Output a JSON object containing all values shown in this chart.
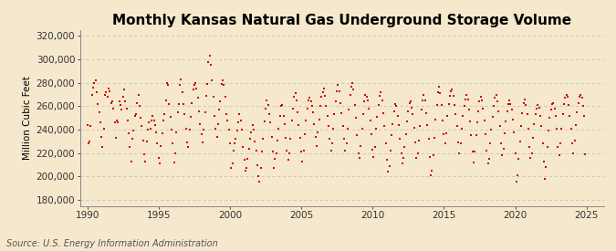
{
  "title": "Monthly Kansas Natural Gas Underground Storage Volume",
  "ylabel": "Million Cubic Feet",
  "source": "Source: U.S. Energy Information Administration",
  "background_color": "#f5e8cc",
  "marker_color": "#cc0000",
  "xlim": [
    1989.5,
    2026.2
  ],
  "ylim": [
    175000,
    325000
  ],
  "yticks": [
    180000,
    200000,
    220000,
    240000,
    260000,
    280000,
    300000,
    320000
  ],
  "ytick_labels": [
    "180,000",
    "200,000",
    "220,000",
    "240,000",
    "260,000",
    "280,000",
    "300,000",
    "320,000"
  ],
  "xticks": [
    1990,
    1995,
    2000,
    2005,
    2010,
    2015,
    2020,
    2025
  ],
  "grid_color": "#bbbbbb",
  "title_fontsize": 11,
  "label_fontsize": 7.5,
  "tick_fontsize": 7.5,
  "source_fontsize": 7,
  "data": [
    [
      1990.0,
      244000
    ],
    [
      1990.08,
      228000
    ],
    [
      1990.17,
      230000
    ],
    [
      1990.25,
      243000
    ],
    [
      1990.33,
      270000
    ],
    [
      1990.42,
      276000
    ],
    [
      1990.5,
      280000
    ],
    [
      1990.58,
      282000
    ],
    [
      1990.67,
      272000
    ],
    [
      1990.75,
      262000
    ],
    [
      1990.83,
      255000
    ],
    [
      1990.92,
      246000
    ],
    [
      1991.0,
      234000
    ],
    [
      1991.08,
      225000
    ],
    [
      1991.17,
      241000
    ],
    [
      1991.25,
      270000
    ],
    [
      1991.33,
      272000
    ],
    [
      1991.42,
      268000
    ],
    [
      1991.5,
      275000
    ],
    [
      1991.58,
      273000
    ],
    [
      1991.67,
      263000
    ],
    [
      1991.75,
      264000
    ],
    [
      1991.83,
      258000
    ],
    [
      1991.92,
      246000
    ],
    [
      1992.0,
      233000
    ],
    [
      1992.08,
      248000
    ],
    [
      1992.17,
      246000
    ],
    [
      1992.25,
      264000
    ],
    [
      1992.33,
      261000
    ],
    [
      1992.42,
      257000
    ],
    [
      1992.5,
      268000
    ],
    [
      1992.58,
      274000
    ],
    [
      1992.67,
      264000
    ],
    [
      1992.75,
      258000
    ],
    [
      1992.83,
      248000
    ],
    [
      1992.92,
      237000
    ],
    [
      1993.0,
      225000
    ],
    [
      1993.08,
      213000
    ],
    [
      1993.17,
      232000
    ],
    [
      1993.25,
      239000
    ],
    [
      1993.33,
      252000
    ],
    [
      1993.42,
      253000
    ],
    [
      1993.5,
      263000
    ],
    [
      1993.58,
      270000
    ],
    [
      1993.67,
      260000
    ],
    [
      1993.75,
      250000
    ],
    [
      1993.83,
      243000
    ],
    [
      1993.92,
      231000
    ],
    [
      1994.0,
      219000
    ],
    [
      1994.08,
      213000
    ],
    [
      1994.17,
      230000
    ],
    [
      1994.25,
      240000
    ],
    [
      1994.33,
      246000
    ],
    [
      1994.42,
      241000
    ],
    [
      1994.5,
      248000
    ],
    [
      1994.58,
      252000
    ],
    [
      1994.67,
      248000
    ],
    [
      1994.75,
      244000
    ],
    [
      1994.83,
      238000
    ],
    [
      1994.92,
      228000
    ],
    [
      1995.0,
      216000
    ],
    [
      1995.08,
      211000
    ],
    [
      1995.17,
      226000
    ],
    [
      1995.25,
      237000
    ],
    [
      1995.33,
      248000
    ],
    [
      1995.42,
      253000
    ],
    [
      1995.5,
      265000
    ],
    [
      1995.58,
      280000
    ],
    [
      1995.67,
      278000
    ],
    [
      1995.75,
      262000
    ],
    [
      1995.83,
      251000
    ],
    [
      1995.92,
      240000
    ],
    [
      1996.0,
      228000
    ],
    [
      1996.08,
      212000
    ],
    [
      1996.17,
      220000
    ],
    [
      1996.25,
      238000
    ],
    [
      1996.33,
      255000
    ],
    [
      1996.42,
      262000
    ],
    [
      1996.5,
      278000
    ],
    [
      1996.58,
      283000
    ],
    [
      1996.67,
      272000
    ],
    [
      1996.75,
      262000
    ],
    [
      1996.83,
      253000
    ],
    [
      1996.92,
      241000
    ],
    [
      1997.0,
      229000
    ],
    [
      1997.08,
      225000
    ],
    [
      1997.17,
      240000
    ],
    [
      1997.25,
      251000
    ],
    [
      1997.33,
      263000
    ],
    [
      1997.42,
      274000
    ],
    [
      1997.5,
      278000
    ],
    [
      1997.58,
      280000
    ],
    [
      1997.67,
      275000
    ],
    [
      1997.75,
      267000
    ],
    [
      1997.83,
      256000
    ],
    [
      1997.92,
      245000
    ],
    [
      1998.0,
      236000
    ],
    [
      1998.08,
      229000
    ],
    [
      1998.17,
      240000
    ],
    [
      1998.25,
      255000
    ],
    [
      1998.33,
      269000
    ],
    [
      1998.42,
      279000
    ],
    [
      1998.5,
      298000
    ],
    [
      1998.58,
      303000
    ],
    [
      1998.67,
      295000
    ],
    [
      1998.75,
      282000
    ],
    [
      1998.83,
      268000
    ],
    [
      1998.92,
      252000
    ],
    [
      1999.0,
      241000
    ],
    [
      1999.08,
      234000
    ],
    [
      1999.17,
      245000
    ],
    [
      1999.25,
      257000
    ],
    [
      1999.33,
      264000
    ],
    [
      1999.42,
      279000
    ],
    [
      1999.5,
      282000
    ],
    [
      1999.58,
      278000
    ],
    [
      1999.67,
      268000
    ],
    [
      1999.75,
      253000
    ],
    [
      1999.83,
      248000
    ],
    [
      1999.92,
      240000
    ],
    [
      2000.0,
      228000
    ],
    [
      2000.08,
      207000
    ],
    [
      2000.17,
      211000
    ],
    [
      2000.25,
      222000
    ],
    [
      2000.33,
      228000
    ],
    [
      2000.42,
      232000
    ],
    [
      2000.5,
      239000
    ],
    [
      2000.58,
      246000
    ],
    [
      2000.67,
      253000
    ],
    [
      2000.75,
      248000
    ],
    [
      2000.83,
      240000
    ],
    [
      2000.92,
      225000
    ],
    [
      2001.0,
      214000
    ],
    [
      2001.08,
      205000
    ],
    [
      2001.17,
      207000
    ],
    [
      2001.25,
      215000
    ],
    [
      2001.33,
      224000
    ],
    [
      2001.42,
      232000
    ],
    [
      2001.5,
      238000
    ],
    [
      2001.58,
      244000
    ],
    [
      2001.67,
      240000
    ],
    [
      2001.75,
      230000
    ],
    [
      2001.83,
      222000
    ],
    [
      2001.92,
      210000
    ],
    [
      2002.0,
      200000
    ],
    [
      2002.08,
      196000
    ],
    [
      2002.17,
      207000
    ],
    [
      2002.25,
      221000
    ],
    [
      2002.33,
      232000
    ],
    [
      2002.42,
      247000
    ],
    [
      2002.5,
      258000
    ],
    [
      2002.58,
      265000
    ],
    [
      2002.67,
      261000
    ],
    [
      2002.75,
      253000
    ],
    [
      2002.83,
      246000
    ],
    [
      2002.92,
      234000
    ],
    [
      2003.0,
      221000
    ],
    [
      2003.08,
      207000
    ],
    [
      2003.17,
      215000
    ],
    [
      2003.25,
      220000
    ],
    [
      2003.33,
      231000
    ],
    [
      2003.42,
      241000
    ],
    [
      2003.5,
      252000
    ],
    [
      2003.58,
      260000
    ],
    [
      2003.67,
      261000
    ],
    [
      2003.75,
      252000
    ],
    [
      2003.83,
      245000
    ],
    [
      2003.92,
      233000
    ],
    [
      2004.0,
      222000
    ],
    [
      2004.08,
      214000
    ],
    [
      2004.17,
      220000
    ],
    [
      2004.25,
      232000
    ],
    [
      2004.33,
      248000
    ],
    [
      2004.42,
      258000
    ],
    [
      2004.5,
      268000
    ],
    [
      2004.58,
      271000
    ],
    [
      2004.67,
      265000
    ],
    [
      2004.75,
      255000
    ],
    [
      2004.83,
      244000
    ],
    [
      2004.92,
      233000
    ],
    [
      2005.0,
      221000
    ],
    [
      2005.08,
      213000
    ],
    [
      2005.17,
      222000
    ],
    [
      2005.25,
      236000
    ],
    [
      2005.33,
      248000
    ],
    [
      2005.42,
      258000
    ],
    [
      2005.5,
      265000
    ],
    [
      2005.58,
      267000
    ],
    [
      2005.67,
      264000
    ],
    [
      2005.75,
      260000
    ],
    [
      2005.83,
      255000
    ],
    [
      2005.92,
      245000
    ],
    [
      2006.0,
      234000
    ],
    [
      2006.08,
      226000
    ],
    [
      2006.17,
      238000
    ],
    [
      2006.25,
      249000
    ],
    [
      2006.33,
      260000
    ],
    [
      2006.42,
      268000
    ],
    [
      2006.5,
      272000
    ],
    [
      2006.58,
      275000
    ],
    [
      2006.67,
      269000
    ],
    [
      2006.75,
      260000
    ],
    [
      2006.83,
      252000
    ],
    [
      2006.92,
      243000
    ],
    [
      2007.0,
      232000
    ],
    [
      2007.08,
      222000
    ],
    [
      2007.17,
      228000
    ],
    [
      2007.25,
      241000
    ],
    [
      2007.33,
      253000
    ],
    [
      2007.42,
      264000
    ],
    [
      2007.5,
      273000
    ],
    [
      2007.58,
      278000
    ],
    [
      2007.67,
      273000
    ],
    [
      2007.75,
      263000
    ],
    [
      2007.83,
      254000
    ],
    [
      2007.92,
      243000
    ],
    [
      2008.0,
      232000
    ],
    [
      2008.08,
      222000
    ],
    [
      2008.17,
      228000
    ],
    [
      2008.25,
      241000
    ],
    [
      2008.33,
      257000
    ],
    [
      2008.42,
      270000
    ],
    [
      2008.5,
      277000
    ],
    [
      2008.58,
      280000
    ],
    [
      2008.67,
      274000
    ],
    [
      2008.75,
      261000
    ],
    [
      2008.83,
      250000
    ],
    [
      2008.92,
      235000
    ],
    [
      2009.0,
      220000
    ],
    [
      2009.08,
      216000
    ],
    [
      2009.17,
      226000
    ],
    [
      2009.25,
      241000
    ],
    [
      2009.33,
      253000
    ],
    [
      2009.42,
      264000
    ],
    [
      2009.5,
      270000
    ],
    [
      2009.58,
      268000
    ],
    [
      2009.67,
      265000
    ],
    [
      2009.75,
      258000
    ],
    [
      2009.83,
      248000
    ],
    [
      2009.92,
      236000
    ],
    [
      2010.0,
      223000
    ],
    [
      2010.08,
      217000
    ],
    [
      2010.17,
      225000
    ],
    [
      2010.25,
      241000
    ],
    [
      2010.33,
      251000
    ],
    [
      2010.42,
      261000
    ],
    [
      2010.5,
      269000
    ],
    [
      2010.58,
      272000
    ],
    [
      2010.67,
      265000
    ],
    [
      2010.75,
      254000
    ],
    [
      2010.83,
      243000
    ],
    [
      2010.92,
      228000
    ],
    [
      2011.0,
      214000
    ],
    [
      2011.08,
      204000
    ],
    [
      2011.17,
      209000
    ],
    [
      2011.25,
      222000
    ],
    [
      2011.33,
      235000
    ],
    [
      2011.42,
      245000
    ],
    [
      2011.5,
      256000
    ],
    [
      2011.58,
      262000
    ],
    [
      2011.67,
      260000
    ],
    [
      2011.75,
      252000
    ],
    [
      2011.83,
      244000
    ],
    [
      2011.92,
      232000
    ],
    [
      2012.0,
      220000
    ],
    [
      2012.08,
      211000
    ],
    [
      2012.17,
      216000
    ],
    [
      2012.25,
      225000
    ],
    [
      2012.33,
      236000
    ],
    [
      2012.42,
      247000
    ],
    [
      2012.5,
      256000
    ],
    [
      2012.58,
      263000
    ],
    [
      2012.67,
      264000
    ],
    [
      2012.75,
      259000
    ],
    [
      2012.83,
      253000
    ],
    [
      2012.92,
      242000
    ],
    [
      2013.0,
      229000
    ],
    [
      2013.08,
      216000
    ],
    [
      2013.17,
      220000
    ],
    [
      2013.25,
      231000
    ],
    [
      2013.33,
      243000
    ],
    [
      2013.42,
      257000
    ],
    [
      2013.5,
      265000
    ],
    [
      2013.58,
      270000
    ],
    [
      2013.67,
      265000
    ],
    [
      2013.75,
      254000
    ],
    [
      2013.83,
      244000
    ],
    [
      2013.92,
      232000
    ],
    [
      2014.0,
      217000
    ],
    [
      2014.08,
      201000
    ],
    [
      2014.17,
      205000
    ],
    [
      2014.25,
      218000
    ],
    [
      2014.33,
      233000
    ],
    [
      2014.42,
      249000
    ],
    [
      2014.5,
      261000
    ],
    [
      2014.58,
      272000
    ],
    [
      2014.67,
      277000
    ],
    [
      2014.75,
      271000
    ],
    [
      2014.83,
      261000
    ],
    [
      2014.92,
      248000
    ],
    [
      2015.0,
      236000
    ],
    [
      2015.08,
      228000
    ],
    [
      2015.17,
      237000
    ],
    [
      2015.25,
      252000
    ],
    [
      2015.33,
      262000
    ],
    [
      2015.42,
      269000
    ],
    [
      2015.5,
      273000
    ],
    [
      2015.58,
      274000
    ],
    [
      2015.67,
      269000
    ],
    [
      2015.75,
      261000
    ],
    [
      2015.83,
      253000
    ],
    [
      2015.92,
      243000
    ],
    [
      2016.0,
      229000
    ],
    [
      2016.08,
      220000
    ],
    [
      2016.17,
      228000
    ],
    [
      2016.25,
      241000
    ],
    [
      2016.33,
      252000
    ],
    [
      2016.42,
      260000
    ],
    [
      2016.5,
      266000
    ],
    [
      2016.58,
      270000
    ],
    [
      2016.67,
      266000
    ],
    [
      2016.75,
      257000
    ],
    [
      2016.83,
      247000
    ],
    [
      2016.92,
      235000
    ],
    [
      2017.0,
      221000
    ],
    [
      2017.08,
      212000
    ],
    [
      2017.17,
      221000
    ],
    [
      2017.25,
      235000
    ],
    [
      2017.33,
      246000
    ],
    [
      2017.42,
      256000
    ],
    [
      2017.5,
      264000
    ],
    [
      2017.58,
      268000
    ],
    [
      2017.67,
      265000
    ],
    [
      2017.75,
      258000
    ],
    [
      2017.83,
      248000
    ],
    [
      2017.92,
      236000
    ],
    [
      2018.0,
      222000
    ],
    [
      2018.08,
      211000
    ],
    [
      2018.17,
      215000
    ],
    [
      2018.25,
      228000
    ],
    [
      2018.33,
      240000
    ],
    [
      2018.42,
      251000
    ],
    [
      2018.5,
      260000
    ],
    [
      2018.58,
      267000
    ],
    [
      2018.67,
      270000
    ],
    [
      2018.75,
      264000
    ],
    [
      2018.83,
      256000
    ],
    [
      2018.92,
      243000
    ],
    [
      2019.0,
      228000
    ],
    [
      2019.08,
      218000
    ],
    [
      2019.17,
      224000
    ],
    [
      2019.25,
      237000
    ],
    [
      2019.33,
      247000
    ],
    [
      2019.42,
      256000
    ],
    [
      2019.5,
      262000
    ],
    [
      2019.58,
      265000
    ],
    [
      2019.67,
      262000
    ],
    [
      2019.75,
      257000
    ],
    [
      2019.83,
      249000
    ],
    [
      2019.92,
      238000
    ],
    [
      2020.0,
      220000
    ],
    [
      2020.08,
      196000
    ],
    [
      2020.17,
      201000
    ],
    [
      2020.25,
      215000
    ],
    [
      2020.33,
      230000
    ],
    [
      2020.42,
      243000
    ],
    [
      2020.5,
      254000
    ],
    [
      2020.58,
      263000
    ],
    [
      2020.67,
      266000
    ],
    [
      2020.75,
      261000
    ],
    [
      2020.83,
      253000
    ],
    [
      2020.92,
      241000
    ],
    [
      2021.0,
      225000
    ],
    [
      2021.08,
      216000
    ],
    [
      2021.17,
      220000
    ],
    [
      2021.25,
      233000
    ],
    [
      2021.33,
      245000
    ],
    [
      2021.42,
      253000
    ],
    [
      2021.5,
      258000
    ],
    [
      2021.58,
      261000
    ],
    [
      2021.67,
      259000
    ],
    [
      2021.75,
      252000
    ],
    [
      2021.83,
      243000
    ],
    [
      2021.92,
      228000
    ],
    [
      2022.0,
      213000
    ],
    [
      2022.08,
      198000
    ],
    [
      2022.17,
      208000
    ],
    [
      2022.25,
      225000
    ],
    [
      2022.33,
      239000
    ],
    [
      2022.42,
      250000
    ],
    [
      2022.5,
      257000
    ],
    [
      2022.58,
      262000
    ],
    [
      2022.67,
      263000
    ],
    [
      2022.75,
      258000
    ],
    [
      2022.83,
      252000
    ],
    [
      2022.92,
      241000
    ],
    [
      2023.0,
      225000
    ],
    [
      2023.08,
      218000
    ],
    [
      2023.17,
      228000
    ],
    [
      2023.25,
      241000
    ],
    [
      2023.33,
      253000
    ],
    [
      2023.42,
      262000
    ],
    [
      2023.5,
      267000
    ],
    [
      2023.58,
      270000
    ],
    [
      2023.67,
      268000
    ],
    [
      2023.75,
      261000
    ],
    [
      2023.83,
      252000
    ],
    [
      2023.92,
      241000
    ],
    [
      2024.0,
      228000
    ],
    [
      2024.08,
      220000
    ],
    [
      2024.17,
      231000
    ],
    [
      2024.25,
      244000
    ],
    [
      2024.33,
      255000
    ],
    [
      2024.42,
      263000
    ],
    [
      2024.5,
      268000
    ],
    [
      2024.58,
      270000
    ],
    [
      2024.67,
      267000
    ],
    [
      2024.75,
      260000
    ],
    [
      2024.83,
      252000
    ],
    [
      2024.92,
      219000
    ]
  ]
}
